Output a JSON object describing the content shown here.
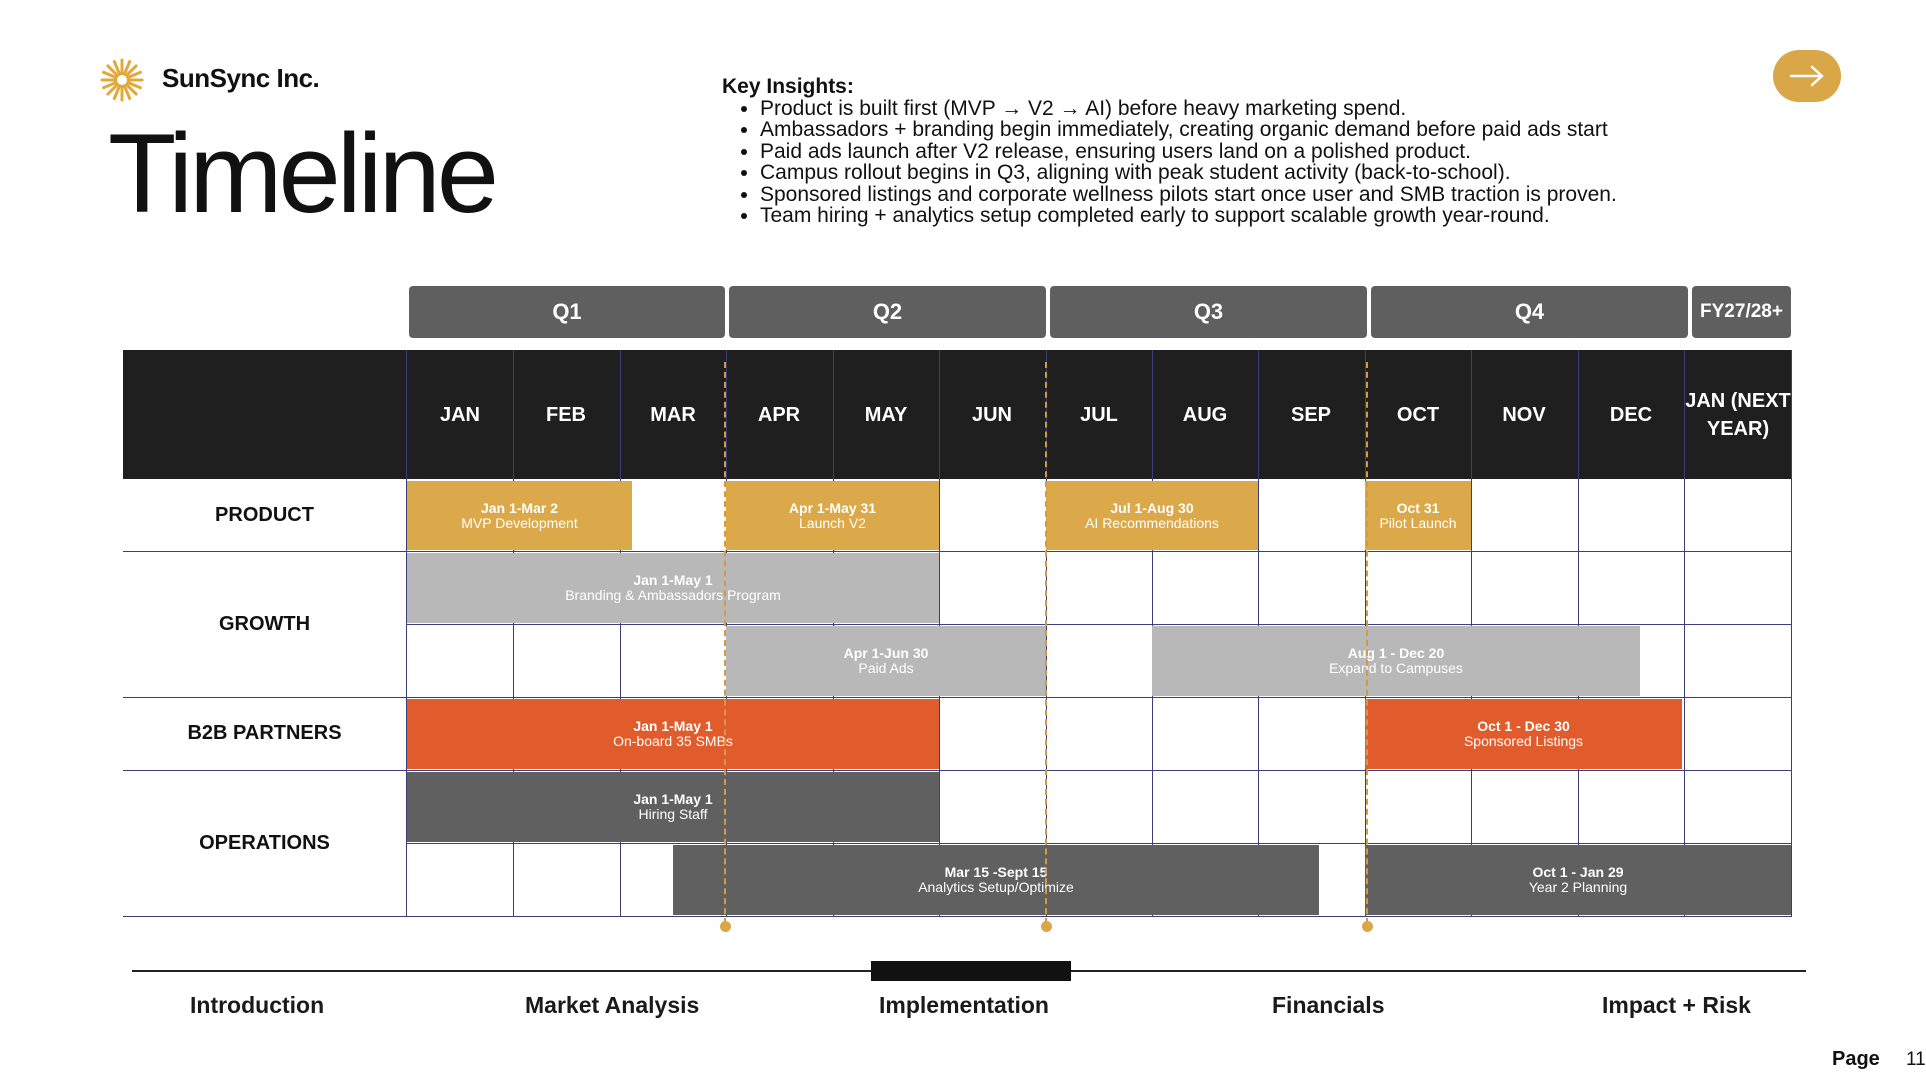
{
  "brand": {
    "name": "SunSync Inc.",
    "logo_icon": "sunburst-icon",
    "logo_color": "#e0a93a"
  },
  "title": "Timeline",
  "insights": {
    "title": "Key Insights:",
    "items": [
      "Product is built first (MVP → V2 → AI) before heavy marketing spend.",
      "Ambassadors + branding begin immediately, creating organic demand before paid ads start",
      "Paid ads launch after V2 release, ensuring users land on a polished product.",
      "Campus rollout begins in Q3, aligning with peak student activity (back-to-school).",
      "Sponsored listings and corporate wellness pilots start once user and SMB traction is proven.",
      "Team hiring + analytics setup completed early to support scalable growth year-round."
    ]
  },
  "next_button": {
    "icon": "arrow-right-icon",
    "color": "#d9a648"
  },
  "quarters": [
    "Q1",
    "Q2",
    "Q3",
    "Q4",
    "FY27/28+"
  ],
  "months": [
    "JAN",
    "FEB",
    "MAR",
    "APR",
    "MAY",
    "JUN",
    "JUL",
    "AUG",
    "SEP",
    "OCT",
    "NOV",
    "DEC",
    "JAN (NEXT YEAR)"
  ],
  "rows": [
    "PRODUCT",
    "GROWTH",
    "B2B PARTNERS",
    "OPERATIONS"
  ],
  "bars": [
    {
      "id": "mvp",
      "dates": "Jan 1-Mar 2",
      "label": "MVP Development"
    },
    {
      "id": "v2",
      "dates": "Apr 1-May 31",
      "label": "Launch V2"
    },
    {
      "id": "ai",
      "dates": "Jul 1-Aug 30",
      "label": "AI Recommendations"
    },
    {
      "id": "pilot",
      "dates": "Oct 31",
      "label": "Pilot Launch"
    },
    {
      "id": "branding",
      "dates": "Jan 1-May 1",
      "label": "Branding & Ambassadors Program"
    },
    {
      "id": "paid",
      "dates": "Apr 1-Jun 30",
      "label": "Paid Ads"
    },
    {
      "id": "campus",
      "dates": "Aug 1 - Dec 20",
      "label": "Expand to Campuses"
    },
    {
      "id": "smb",
      "dates": "Jan 1-May 1",
      "label": "On-board 35 SMBs"
    },
    {
      "id": "sponsored",
      "dates": "Oct 1 - Dec 30",
      "label": "Sponsored Listings"
    },
    {
      "id": "hiring",
      "dates": "Jan 1-May 1",
      "label": "Hiring Staff"
    },
    {
      "id": "analytics",
      "dates": "Mar 15 -Sept 15",
      "label": "Analytics Setup/Optimize"
    },
    {
      "id": "planning",
      "dates": "Oct 1 - Jan 29",
      "label": "Year 2 Planning"
    }
  ],
  "colors": {
    "product": "#dba84a",
    "growth": "#b8b8b8",
    "b2b": "#e05c2c",
    "operations": "#606060",
    "milestone": "#d39b3e"
  },
  "nav": {
    "items": [
      "Introduction",
      "Market Analysis",
      "Implementation",
      "Financials",
      "Impact + Risk"
    ],
    "active": "Implementation"
  },
  "page": {
    "label": "Page",
    "number": "11"
  }
}
